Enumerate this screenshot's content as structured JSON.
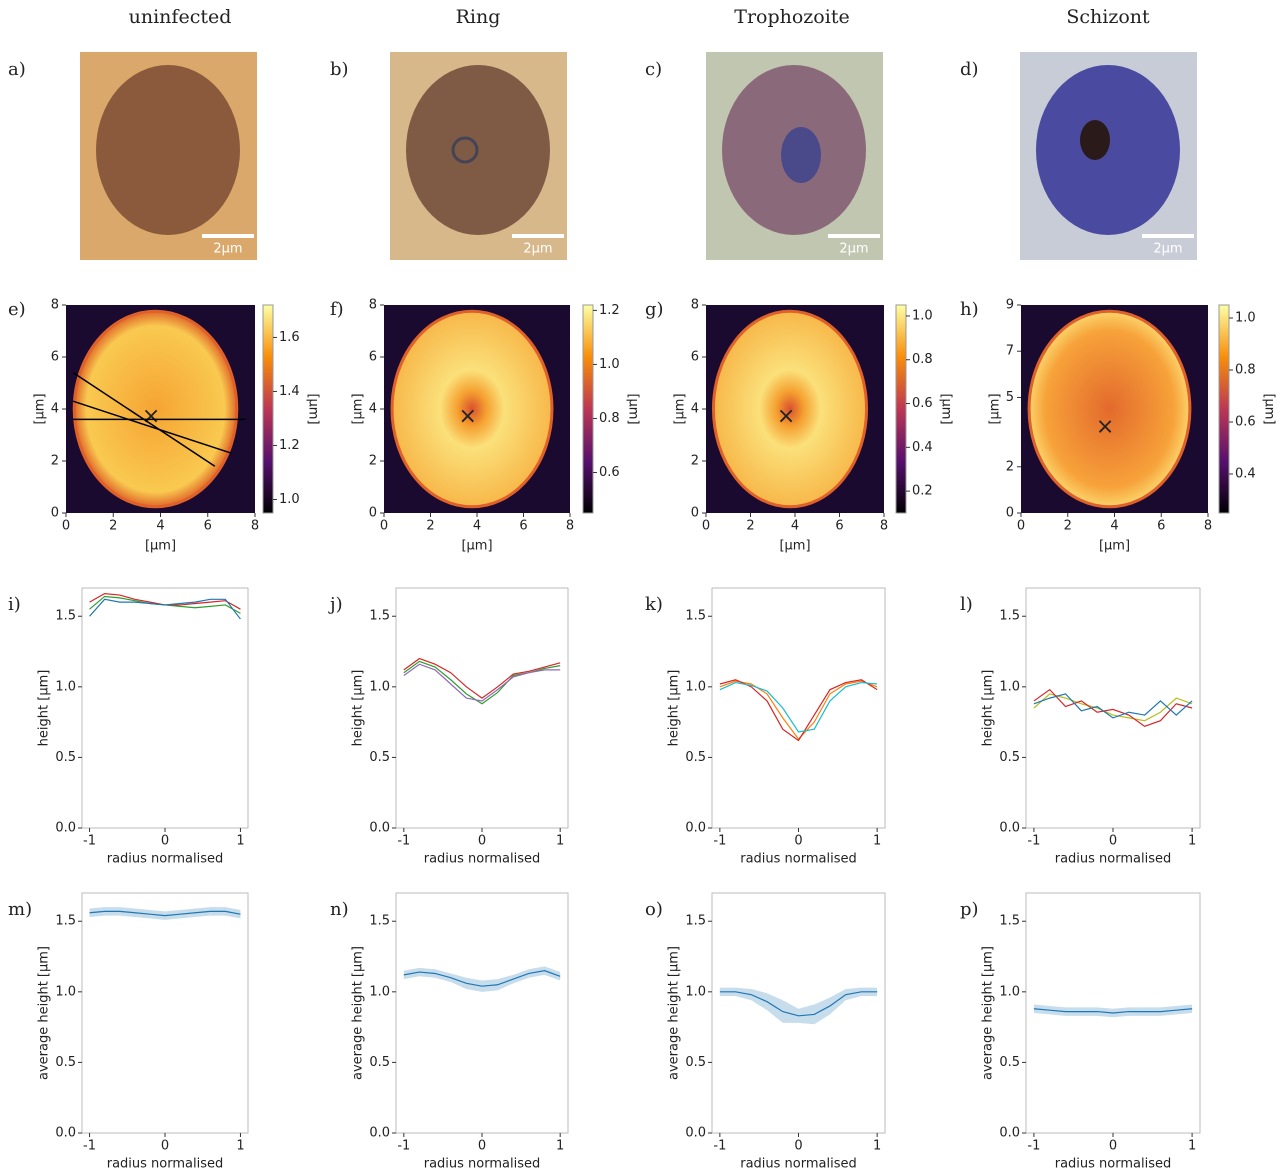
{
  "columns": [
    "uninfected",
    "Ring",
    "Trophozoite",
    "Schizont"
  ],
  "micrographs": [
    {
      "label": "a)",
      "scale_bar": "2µm"
    },
    {
      "label": "b)",
      "scale_bar": "2µm"
    },
    {
      "label": "c)",
      "scale_bar": "2µm"
    },
    {
      "label": "d)",
      "scale_bar": "2µm"
    }
  ],
  "heightmaps": [
    {
      "label": "e)",
      "xlabel": "[µm]",
      "ylabel": "[µm]",
      "colorbar_label": "[µm]",
      "xlim": [
        0,
        8
      ],
      "ylim": [
        0,
        8
      ],
      "xticks": [
        0,
        2,
        4,
        6,
        8
      ],
      "yticks": [
        0,
        2,
        4,
        6,
        8
      ],
      "clim": [
        0.95,
        1.72
      ],
      "cticks": [
        {
          "value": 1.0,
          "label": "1.0"
        },
        1.2,
        1.4,
        1.6
      ]
    },
    {
      "label": "f)",
      "xlabel": "[µm]",
      "ylabel": "[µm]",
      "colorbar_label": "[µm]",
      "xlim": [
        0,
        8
      ],
      "ylim": [
        0,
        8
      ],
      "xticks": [
        0,
        2,
        4,
        6,
        8
      ],
      "yticks": [
        0,
        2,
        4,
        6,
        8
      ],
      "clim": [
        0.45,
        1.22
      ],
      "cticks": [
        0.6,
        0.8,
        {
          "value": 1.0,
          "label": "1.0"
        },
        1.2
      ]
    },
    {
      "label": "g)",
      "xlabel": "[µm]",
      "ylabel": "[µm]",
      "colorbar_label": "[µm]",
      "xlim": [
        0,
        8
      ],
      "ylim": [
        0,
        8
      ],
      "xticks": [
        0,
        2,
        4,
        6,
        8
      ],
      "yticks": [
        0,
        2,
        4,
        6,
        8
      ],
      "clim": [
        0.1,
        1.05
      ],
      "cticks": [
        0.2,
        0.4,
        0.6,
        0.8,
        {
          "value": 1.0,
          "label": "1.0"
        }
      ]
    },
    {
      "label": "h)",
      "xlabel": "[µm]",
      "ylabel": "[µm]",
      "colorbar_label": "[µm]",
      "xlim": [
        0,
        8
      ],
      "ylim": [
        0,
        9
      ],
      "xticks": [
        0,
        2,
        4,
        6,
        8
      ],
      "yticks": [
        0,
        2,
        5,
        7,
        9
      ],
      "clim": [
        0.25,
        1.05
      ],
      "cticks": [
        0.4,
        0.6,
        0.8,
        {
          "value": 1.0,
          "label": "1.0"
        }
      ]
    }
  ],
  "profiles": [
    {
      "label": "i)",
      "type": "line",
      "xlabel": "radius normalised",
      "ylabel": "height [µm]",
      "xlim": [
        -1.1,
        1.1
      ],
      "ylim": [
        0,
        1.7
      ],
      "xticks": [
        -1,
        0,
        1
      ],
      "yticks": [
        {
          "value": 0,
          "label": "0.0"
        },
        0.5,
        {
          "value": 1,
          "label": "1.0"
        },
        1.5
      ],
      "x": [
        -1,
        -0.8,
        -0.6,
        -0.4,
        -0.2,
        0,
        0.2,
        0.4,
        0.6,
        0.8,
        1
      ],
      "series": [
        {
          "color": "#2ca02c",
          "values": [
            1.55,
            1.64,
            1.63,
            1.61,
            1.59,
            1.58,
            1.57,
            1.56,
            1.57,
            1.58,
            1.52
          ]
        },
        {
          "color": "#d62728",
          "values": [
            1.6,
            1.66,
            1.65,
            1.62,
            1.6,
            1.58,
            1.58,
            1.59,
            1.6,
            1.61,
            1.55
          ]
        },
        {
          "color": "#1f77b4",
          "values": [
            1.5,
            1.62,
            1.6,
            1.6,
            1.59,
            1.58,
            1.59,
            1.6,
            1.62,
            1.62,
            1.48
          ]
        }
      ]
    },
    {
      "label": "j)",
      "type": "line",
      "xlabel": "radius normalised",
      "ylabel": "height [µm]",
      "xlim": [
        -1.1,
        1.1
      ],
      "ylim": [
        0,
        1.7
      ],
      "xticks": [
        -1,
        0,
        1
      ],
      "yticks": [
        {
          "value": 0,
          "label": "0.0"
        },
        0.5,
        {
          "value": 1,
          "label": "1.0"
        },
        1.5
      ],
      "x": [
        -1,
        -0.8,
        -0.6,
        -0.4,
        -0.2,
        0,
        0.2,
        0.4,
        0.6,
        0.8,
        1
      ],
      "series": [
        {
          "color": "#2ca02c",
          "values": [
            1.1,
            1.18,
            1.14,
            1.05,
            0.95,
            0.88,
            0.96,
            1.08,
            1.1,
            1.13,
            1.15
          ]
        },
        {
          "color": "#d62728",
          "values": [
            1.12,
            1.2,
            1.16,
            1.1,
            1.0,
            0.92,
            1.0,
            1.09,
            1.11,
            1.14,
            1.17
          ]
        },
        {
          "color": "#9467bd",
          "values": [
            1.08,
            1.16,
            1.12,
            1.02,
            0.92,
            0.9,
            0.98,
            1.07,
            1.1,
            1.12,
            1.12
          ]
        }
      ]
    },
    {
      "label": "k)",
      "type": "line",
      "xlabel": "radius normalised",
      "ylabel": "height [µm]",
      "xlim": [
        -1.1,
        1.1
      ],
      "ylim": [
        0,
        1.7
      ],
      "xticks": [
        -1,
        0,
        1
      ],
      "yticks": [
        {
          "value": 0,
          "label": "0.0"
        },
        0.5,
        {
          "value": 1,
          "label": "1.0"
        },
        1.5
      ],
      "x": [
        -1,
        -0.8,
        -0.6,
        -0.4,
        -0.2,
        0,
        0.2,
        0.4,
        0.6,
        0.8,
        1
      ],
      "series": [
        {
          "color": "#ff7f0e",
          "values": [
            1.0,
            1.04,
            1.02,
            0.95,
            0.78,
            0.63,
            0.75,
            0.95,
            1.02,
            1.04,
            1.0
          ]
        },
        {
          "color": "#d62728",
          "values": [
            1.02,
            1.05,
            1.0,
            0.9,
            0.7,
            0.62,
            0.8,
            0.98,
            1.03,
            1.05,
            0.98
          ]
        },
        {
          "color": "#17becf",
          "values": [
            0.98,
            1.03,
            1.01,
            0.97,
            0.85,
            0.68,
            0.7,
            0.9,
            1.0,
            1.03,
            1.02
          ]
        }
      ]
    },
    {
      "label": "l)",
      "type": "line",
      "xlabel": "radius normalised",
      "ylabel": "height [µm]",
      "xlim": [
        -1.1,
        1.1
      ],
      "ylim": [
        0,
        1.7
      ],
      "xticks": [
        -1,
        0,
        1
      ],
      "yticks": [
        {
          "value": 0,
          "label": "0.0"
        },
        0.5,
        {
          "value": 1,
          "label": "1.0"
        },
        1.5
      ],
      "x": [
        -1,
        -0.8,
        -0.6,
        -0.4,
        -0.2,
        0,
        0.2,
        0.4,
        0.6,
        0.8,
        1
      ],
      "series": [
        {
          "color": "#bcbd22",
          "values": [
            0.85,
            0.95,
            0.92,
            0.88,
            0.85,
            0.8,
            0.78,
            0.76,
            0.82,
            0.92,
            0.88
          ]
        },
        {
          "color": "#d62728",
          "values": [
            0.9,
            0.98,
            0.86,
            0.9,
            0.82,
            0.84,
            0.8,
            0.72,
            0.76,
            0.88,
            0.85
          ]
        },
        {
          "color": "#1f77b4",
          "values": [
            0.88,
            0.92,
            0.95,
            0.83,
            0.86,
            0.78,
            0.82,
            0.8,
            0.9,
            0.8,
            0.9
          ]
        }
      ]
    },
    {
      "label": "m)",
      "type": "band",
      "xlabel": "radius normalised",
      "ylabel": "average height [µm]",
      "xlim": [
        -1.1,
        1.1
      ],
      "ylim": [
        0,
        1.7
      ],
      "xticks": [
        -1,
        0,
        1
      ],
      "yticks": [
        {
          "value": 0,
          "label": "0.0"
        },
        0.5,
        {
          "value": 1,
          "label": "1.0"
        },
        1.5
      ],
      "x": [
        -1,
        -0.8,
        -0.6,
        -0.4,
        -0.2,
        0,
        0.2,
        0.4,
        0.6,
        0.8,
        1
      ],
      "series": [
        {
          "color": "#1f77b4",
          "values": [
            1.56,
            1.57,
            1.57,
            1.56,
            1.55,
            1.54,
            1.55,
            1.56,
            1.57,
            1.57,
            1.55
          ],
          "errors": [
            0.03,
            0.03,
            0.03,
            0.03,
            0.03,
            0.03,
            0.03,
            0.03,
            0.03,
            0.03,
            0.03
          ]
        }
      ]
    },
    {
      "label": "n)",
      "type": "band",
      "xlabel": "radius normalised",
      "ylabel": "average height [µm]",
      "xlim": [
        -1.1,
        1.1
      ],
      "ylim": [
        0,
        1.7
      ],
      "xticks": [
        -1,
        0,
        1
      ],
      "yticks": [
        {
          "value": 0,
          "label": "0.0"
        },
        0.5,
        {
          "value": 1,
          "label": "1.0"
        },
        1.5
      ],
      "x": [
        -1,
        -0.8,
        -0.6,
        -0.4,
        -0.2,
        0,
        0.2,
        0.4,
        0.6,
        0.8,
        1
      ],
      "series": [
        {
          "color": "#1f77b4",
          "values": [
            1.12,
            1.14,
            1.13,
            1.1,
            1.06,
            1.04,
            1.05,
            1.09,
            1.13,
            1.15,
            1.11
          ],
          "errors": [
            0.03,
            0.03,
            0.03,
            0.03,
            0.04,
            0.04,
            0.04,
            0.03,
            0.03,
            0.03,
            0.03
          ]
        }
      ]
    },
    {
      "label": "o)",
      "type": "band",
      "xlabel": "radius normalised",
      "ylabel": "average height [µm]",
      "xlim": [
        -1.1,
        1.1
      ],
      "ylim": [
        0,
        1.7
      ],
      "xticks": [
        -1,
        0,
        1
      ],
      "yticks": [
        {
          "value": 0,
          "label": "0.0"
        },
        0.5,
        {
          "value": 1,
          "label": "1.0"
        },
        1.5
      ],
      "x": [
        -1,
        -0.8,
        -0.6,
        -0.4,
        -0.2,
        0,
        0.2,
        0.4,
        0.6,
        0.8,
        1
      ],
      "series": [
        {
          "color": "#1f77b4",
          "values": [
            1.0,
            1.0,
            0.98,
            0.93,
            0.86,
            0.83,
            0.84,
            0.9,
            0.98,
            1.0,
            1.0
          ],
          "errors": [
            0.03,
            0.03,
            0.04,
            0.06,
            0.08,
            0.05,
            0.07,
            0.06,
            0.04,
            0.03,
            0.03
          ]
        }
      ]
    },
    {
      "label": "p)",
      "type": "band",
      "xlabel": "radius normalised",
      "ylabel": "average height [µm]",
      "xlim": [
        -1.1,
        1.1
      ],
      "ylim": [
        0,
        1.7
      ],
      "xticks": [
        -1,
        0,
        1
      ],
      "yticks": [
        {
          "value": 0,
          "label": "0.0"
        },
        0.5,
        {
          "value": 1,
          "label": "1.0"
        },
        1.5
      ],
      "x": [
        -1,
        -0.8,
        -0.6,
        -0.4,
        -0.2,
        0,
        0.2,
        0.4,
        0.6,
        0.8,
        1
      ],
      "series": [
        {
          "color": "#1f77b4",
          "values": [
            0.88,
            0.87,
            0.86,
            0.86,
            0.86,
            0.85,
            0.86,
            0.86,
            0.86,
            0.87,
            0.88
          ],
          "errors": [
            0.03,
            0.03,
            0.03,
            0.03,
            0.03,
            0.03,
            0.03,
            0.03,
            0.03,
            0.03,
            0.03
          ]
        }
      ]
    }
  ]
}
